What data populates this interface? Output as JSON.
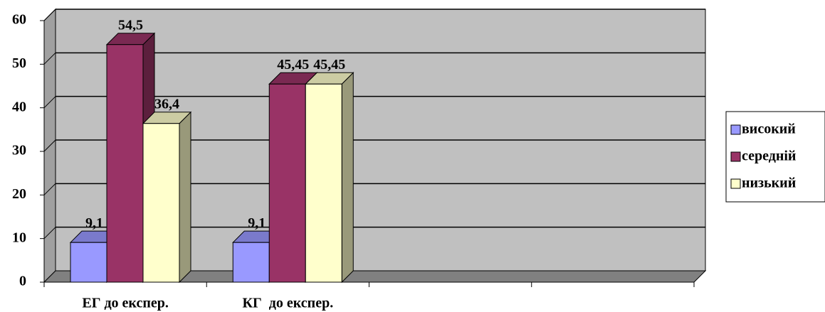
{
  "chart_data": {
    "type": "bar3d",
    "categories": [
      "ЕГ до експер.",
      "КГ  до експер.",
      null,
      null
    ],
    "series": [
      {
        "name": "високий",
        "color": "#9999ff",
        "values": [
          9.1,
          9.1,
          null,
          null
        ],
        "value_labels": [
          "9,1",
          "9,1",
          null,
          null
        ]
      },
      {
        "name": "середній",
        "color": "#993366",
        "values": [
          54.5,
          45.45,
          null,
          null
        ],
        "value_labels": [
          "54,5",
          "45,45",
          null,
          null
        ]
      },
      {
        "name": "низький",
        "color": "#ffffcc",
        "values": [
          36.4,
          45.45,
          null,
          null
        ],
        "value_labels": [
          "36,4",
          "45,45",
          null,
          null
        ]
      }
    ],
    "ylim": [
      0,
      60
    ],
    "yticks": [
      0,
      10,
      20,
      30,
      40,
      50,
      60
    ],
    "grid": true,
    "legend": "right"
  }
}
